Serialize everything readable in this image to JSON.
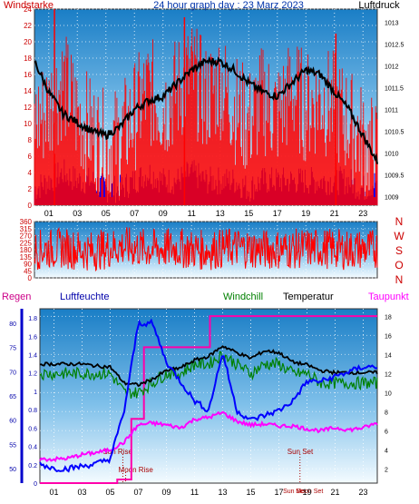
{
  "chart_data": [
    {
      "type": "line",
      "title": "24 hour graph day : 23 Marz 2023",
      "left_label": "Windstarke",
      "right_label": "Luftdruck",
      "x_ticks": [
        "01",
        "03",
        "05",
        "07",
        "09",
        "11",
        "13",
        "15",
        "17",
        "19",
        "21",
        "23"
      ],
      "x_range": [
        0,
        24
      ],
      "y_left_ticks": [
        0,
        2,
        4,
        6,
        8,
        10,
        12,
        14,
        16,
        18,
        20,
        22,
        24
      ],
      "y_left_range": [
        0,
        24
      ],
      "y_right_ticks": [
        1009,
        1009.5,
        1010,
        1010.5,
        1011,
        1011.5,
        1012,
        1012.5,
        1013
      ],
      "y_right_range": [
        1008.8,
        1013.3
      ],
      "grid": true,
      "series": [
        {
          "name": "Windstarke",
          "color": "#ff0000",
          "x": [
            0,
            1,
            2,
            3,
            4,
            5,
            6,
            7,
            8,
            9,
            10,
            11,
            12,
            13,
            14,
            15,
            16,
            17,
            18,
            19,
            20,
            21,
            22,
            23,
            24
          ],
          "values": [
            10,
            12,
            15,
            11,
            9,
            7,
            8,
            11,
            14,
            12,
            14,
            16,
            13,
            15,
            12,
            10,
            13,
            11,
            14,
            12,
            13,
            12,
            10,
            8,
            6
          ]
        },
        {
          "name": "Windstarke gust",
          "color": "#ff0000",
          "x": [
            1.4,
            10.5,
            21.1
          ],
          "values": [
            24,
            23,
            21
          ]
        },
        {
          "name": "Windrichtung Boen",
          "color": "#0000ff",
          "x": [
            0,
            1,
            2,
            3,
            4,
            5,
            6,
            7,
            8,
            9,
            10,
            11,
            12,
            13,
            14,
            15,
            16,
            17,
            18,
            19,
            20,
            21,
            22,
            23,
            24
          ],
          "values": [
            2,
            3,
            4,
            3,
            3,
            2,
            2,
            3,
            4,
            3,
            3,
            4,
            3,
            3,
            3,
            2,
            3,
            3,
            3,
            3,
            3,
            3,
            3,
            2,
            3
          ]
        },
        {
          "name": "Luftdruck",
          "color": "#000000",
          "x": [
            0,
            1,
            2,
            3,
            4,
            5,
            6,
            7,
            8,
            9,
            10,
            11,
            12,
            13,
            14,
            15,
            16,
            17,
            18,
            19,
            20,
            21,
            22,
            23,
            24
          ],
          "values": [
            1012.1,
            1011.4,
            1010.9,
            1010.7,
            1010.5,
            1010.4,
            1010.6,
            1011.0,
            1011.2,
            1011.3,
            1011.6,
            1011.9,
            1012.1,
            1012.1,
            1011.9,
            1011.6,
            1011.4,
            1011.3,
            1011.6,
            1011.9,
            1011.8,
            1011.4,
            1011.0,
            1010.4,
            1009.8
          ]
        }
      ]
    },
    {
      "type": "line",
      "x_ticks": [
        "01",
        "03",
        "05",
        "07",
        "09",
        "11",
        "13",
        "15",
        "17",
        "19",
        "21",
        "23"
      ],
      "x_range": [
        0,
        24
      ],
      "y_left_ticks": [
        0,
        45,
        90,
        135,
        180,
        225,
        270,
        315,
        360
      ],
      "y_left_range": [
        0,
        360
      ],
      "compass_labels": [
        "N",
        "W",
        "S",
        "O",
        "N"
      ],
      "grid": true,
      "series": [
        {
          "name": "Windrichtung",
          "color": "#ff0000",
          "x": [
            0,
            2,
            4,
            6,
            8,
            10,
            12,
            14,
            16,
            18,
            20,
            22,
            24
          ],
          "values": [
            180,
            190,
            170,
            200,
            185,
            190,
            175,
            195,
            180,
            185,
            190,
            180,
            185
          ]
        }
      ]
    },
    {
      "type": "line",
      "labels": {
        "rain": "Regen",
        "humidity": "Luftfeuchte",
        "windchill": "Windchill",
        "temperature": "Temperatur",
        "dewpoint": "Taupunkt"
      },
      "x_ticks": [
        "01",
        "03",
        "05",
        "07",
        "09",
        "11",
        "13",
        "15",
        "17",
        "19",
        "21",
        "23"
      ],
      "x_range": [
        0,
        24
      ],
      "y_rain_ticks": [
        0,
        0.2,
        0.4,
        0.6,
        0.8,
        1,
        1.2,
        1.4,
        1.6,
        1.8
      ],
      "y_rain_range": [
        0,
        1.9
      ],
      "y_humidity_ticks": [
        50,
        55,
        60,
        65,
        70,
        75,
        80
      ],
      "y_humidity_range": [
        47,
        83
      ],
      "y_temp_ticks": [
        2,
        4,
        6,
        8,
        10,
        12,
        14,
        16,
        18
      ],
      "y_temp_range": [
        0.5,
        18.8
      ],
      "annotations": [
        {
          "text": "Sun Rise",
          "x": 5.9
        },
        {
          "text": "Moon Rise",
          "x": 6.1
        },
        {
          "text": "Sun Set",
          "x": 18.5
        },
        {
          "text": "Sun Se",
          "x": 18.2
        },
        {
          "text": "Moon Set",
          "x": 18.6
        }
      ],
      "grid": true,
      "series": [
        {
          "name": "Regen",
          "color": "#ff00aa",
          "x": [
            0,
            5.5,
            5.5,
            6.5,
            6.5,
            7.4,
            7.4,
            12.1,
            12.1,
            24
          ],
          "values": [
            0,
            0,
            0.04,
            0.04,
            0.7,
            0.7,
            1.48,
            1.48,
            1.82,
            1.82
          ]
        },
        {
          "name": "Luftfeuchte",
          "color": "#0000ff",
          "x": [
            0,
            1,
            2,
            3,
            4,
            5,
            6,
            7,
            8,
            9,
            10,
            11,
            12,
            13,
            14,
            15,
            16,
            17,
            18,
            19,
            20,
            21,
            22,
            23,
            24
          ],
          "values": [
            51,
            50,
            50,
            50.5,
            51,
            52,
            62,
            80,
            80,
            72,
            68,
            64,
            62,
            74,
            62,
            60,
            61,
            62,
            64,
            68,
            68,
            69,
            70,
            71,
            71
          ]
        },
        {
          "name": "Windchill",
          "color": "#008000",
          "x": [
            0,
            1,
            2,
            3,
            4,
            5,
            6,
            7,
            8,
            9,
            10,
            11,
            12,
            13,
            14,
            15,
            16,
            17,
            18,
            19,
            20,
            21,
            22,
            23,
            24
          ],
          "values": [
            12,
            12,
            12,
            12,
            12,
            12,
            10,
            10,
            11,
            12,
            12,
            13,
            13,
            14,
            13,
            12,
            13,
            13,
            12,
            12,
            11,
            11,
            11,
            11,
            11
          ]
        },
        {
          "name": "Temperatur",
          "color": "#000000",
          "x": [
            0,
            1,
            2,
            3,
            4,
            5,
            6,
            7,
            8,
            9,
            10,
            11,
            12,
            13,
            14,
            15,
            16,
            17,
            18,
            19,
            20,
            21,
            22,
            23,
            24
          ],
          "values": [
            13,
            13,
            13,
            13,
            12.8,
            12.7,
            11,
            10.8,
            11.4,
            12.3,
            12.6,
            13.4,
            13.8,
            14.9,
            14.2,
            13.6,
            14.4,
            14.2,
            13.2,
            12.9,
            12.3,
            12.1,
            12.1,
            12.1,
            12.1
          ]
        },
        {
          "name": "Taupunkt",
          "color": "#ff00ff",
          "x": [
            0,
            1,
            2,
            3,
            4,
            5,
            6,
            7,
            8,
            9,
            10,
            11,
            12,
            13,
            14,
            15,
            16,
            17,
            18,
            19,
            20,
            21,
            22,
            23,
            24
          ],
          "values": [
            3,
            3,
            3.1,
            3.5,
            3.7,
            4,
            4.8,
            6.6,
            6.8,
            6.6,
            6.3,
            7.2,
            7.4,
            7.9,
            7,
            6.6,
            6.7,
            6.5,
            6.5,
            6.2,
            6,
            6.3,
            6.1,
            6.3,
            6.8
          ]
        }
      ]
    }
  ]
}
